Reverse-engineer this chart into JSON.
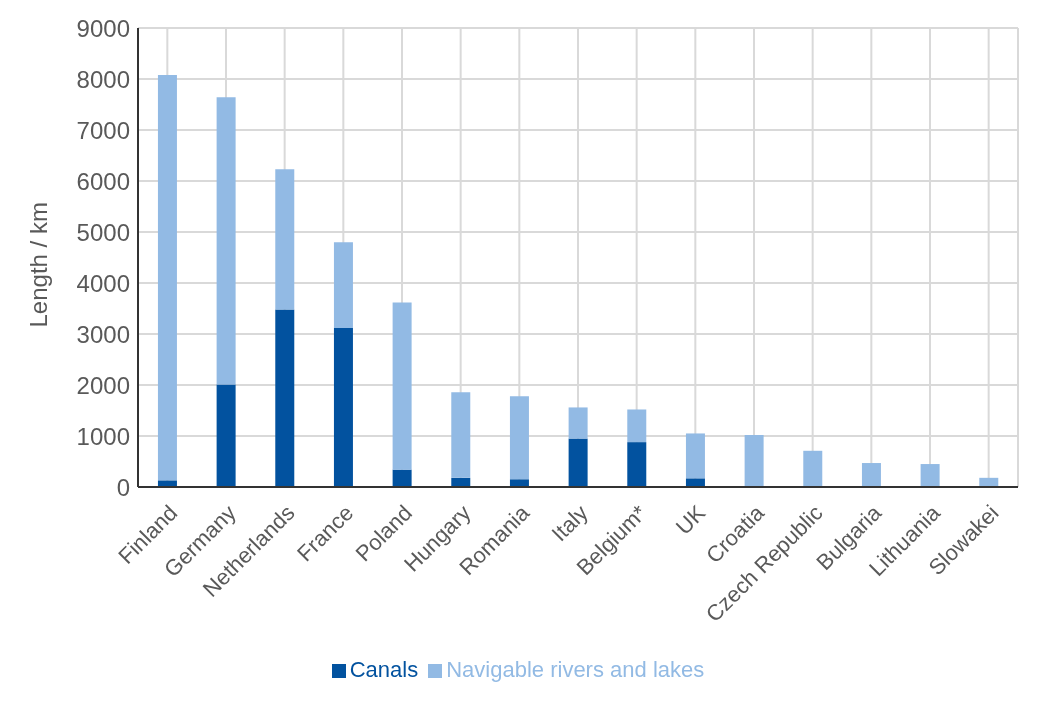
{
  "chart_data": {
    "type": "bar",
    "stacked": true,
    "ylabel": "Length / km",
    "categories": [
      "Finland",
      "Germany",
      "Netherlands",
      "France",
      "Poland",
      "Hungary",
      "Romania",
      "Italy",
      "Belgium*",
      "UK",
      "Croatia",
      "Czech Republic",
      "Bulgaria",
      "Lithuania",
      "Slowakei"
    ],
    "series": [
      {
        "name": "Canals",
        "color": "#02529f",
        "values": [
          130,
          2010,
          3480,
          3120,
          340,
          180,
          150,
          950,
          880,
          170,
          0,
          0,
          0,
          0,
          0
        ]
      },
      {
        "name": "Navigable rivers and lakes",
        "color": "#92bae4",
        "values": [
          7950,
          5630,
          2750,
          1680,
          3280,
          1680,
          1630,
          610,
          640,
          880,
          1020,
          710,
          470,
          450,
          180
        ]
      }
    ],
    "ylim": [
      0,
      9000
    ],
    "yticks": [
      0,
      1000,
      2000,
      3000,
      4000,
      5000,
      6000,
      7000,
      8000,
      9000
    ],
    "grid": true,
    "legend": "bottom"
  }
}
